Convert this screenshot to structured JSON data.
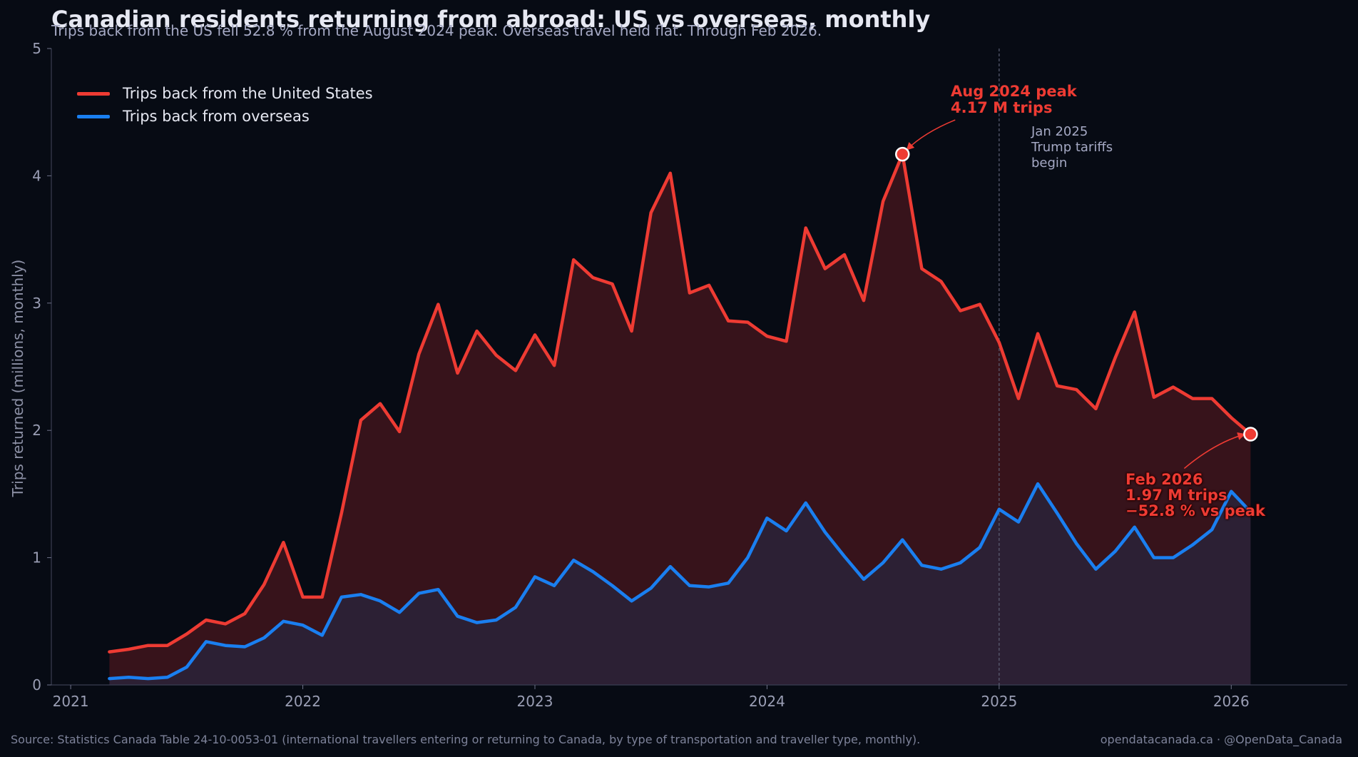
{
  "title": "Canadian residents returning from abroad: US vs overseas, monthly",
  "subtitle": "Trips back from the US fell 52.8 % from the August 2024 peak. Overseas travel held flat. Through Feb 2026.",
  "source": "Source: Statistics Canada Table 24-10-0053-01 (international travellers entering or returning to Canada, by type of transportation and traveller type, monthly).",
  "credit": "opendatacanada.ca · @OpenData_Canada",
  "colors": {
    "background": "#070b14",
    "us": "#ee3b33",
    "overseas": "#1a7ff0",
    "us_fill": "#3a141b",
    "overseas_fill": "#2e2236"
  },
  "annotations": {
    "peak": [
      "Aug 2024 peak",
      "4.17 M trips"
    ],
    "tariff": [
      "Jan 2025",
      "Trump tariffs",
      "begin"
    ],
    "latest": [
      "Feb 2026",
      "1.97 M trips",
      "−52.8 % vs peak"
    ]
  },
  "chart_data": {
    "type": "area",
    "title": "Canadian residents returning from abroad: US vs overseas, monthly",
    "xlabel": "",
    "ylabel": "Trips returned (millions, monthly)",
    "ylim": [
      0,
      5
    ],
    "yticks": [
      0,
      1,
      2,
      3,
      4,
      5
    ],
    "xticks": [
      "2021",
      "2022",
      "2023",
      "2024",
      "2025",
      "2026"
    ],
    "xlim": [
      "2020-12",
      "2026-07"
    ],
    "grid": false,
    "legend_position": "top-left",
    "x": [
      "2021-03",
      "2021-04",
      "2021-05",
      "2021-06",
      "2021-07",
      "2021-08",
      "2021-09",
      "2021-10",
      "2021-11",
      "2021-12",
      "2022-01",
      "2022-02",
      "2022-03",
      "2022-04",
      "2022-05",
      "2022-06",
      "2022-07",
      "2022-08",
      "2022-09",
      "2022-10",
      "2022-11",
      "2022-12",
      "2023-01",
      "2023-02",
      "2023-03",
      "2023-04",
      "2023-05",
      "2023-06",
      "2023-07",
      "2023-08",
      "2023-09",
      "2023-10",
      "2023-11",
      "2023-12",
      "2024-01",
      "2024-02",
      "2024-03",
      "2024-04",
      "2024-05",
      "2024-06",
      "2024-07",
      "2024-08",
      "2024-09",
      "2024-10",
      "2024-11",
      "2024-12",
      "2025-01",
      "2025-02",
      "2025-03",
      "2025-04",
      "2025-05",
      "2025-06",
      "2025-07",
      "2025-08",
      "2025-09",
      "2025-10",
      "2025-11",
      "2025-12",
      "2026-01",
      "2026-02"
    ],
    "series": [
      {
        "name": "Trips back from the United States",
        "values": [
          0.26,
          0.28,
          0.31,
          0.31,
          0.4,
          0.51,
          0.48,
          0.56,
          0.79,
          1.12,
          0.69,
          0.69,
          1.35,
          2.08,
          2.21,
          1.99,
          2.6,
          2.99,
          2.45,
          2.78,
          2.59,
          2.47,
          2.75,
          2.51,
          3.34,
          3.2,
          3.15,
          2.78,
          3.71,
          4.02,
          3.08,
          3.14,
          2.86,
          2.85,
          2.74,
          2.7,
          3.59,
          3.27,
          3.38,
          3.02,
          3.8,
          4.17,
          3.27,
          3.17,
          2.94,
          2.99,
          2.69,
          2.25,
          2.76,
          2.35,
          2.32,
          2.17,
          2.57,
          2.93,
          2.26,
          2.34,
          2.25,
          2.25,
          2.1,
          1.97
        ]
      },
      {
        "name": "Trips back from overseas",
        "values": [
          0.05,
          0.06,
          0.05,
          0.06,
          0.14,
          0.34,
          0.31,
          0.3,
          0.37,
          0.5,
          0.47,
          0.39,
          0.69,
          0.71,
          0.66,
          0.57,
          0.72,
          0.75,
          0.54,
          0.49,
          0.51,
          0.61,
          0.85,
          0.78,
          0.98,
          0.89,
          0.78,
          0.66,
          0.76,
          0.93,
          0.78,
          0.77,
          0.8,
          1.0,
          1.31,
          1.21,
          1.43,
          1.2,
          1.01,
          0.83,
          0.96,
          1.14,
          0.94,
          0.91,
          0.96,
          1.08,
          1.38,
          1.28,
          1.58,
          1.35,
          1.11,
          0.91,
          1.05,
          1.24,
          1.0,
          1.0,
          1.1,
          1.22,
          1.52,
          1.36
        ]
      }
    ],
    "highlights": [
      {
        "x": "2024-08",
        "y": 4.17,
        "series": "Trips back from the United States"
      },
      {
        "x": "2026-02",
        "y": 1.97,
        "series": "Trips back from the United States"
      }
    ],
    "vline": {
      "x": "2025-01"
    }
  }
}
